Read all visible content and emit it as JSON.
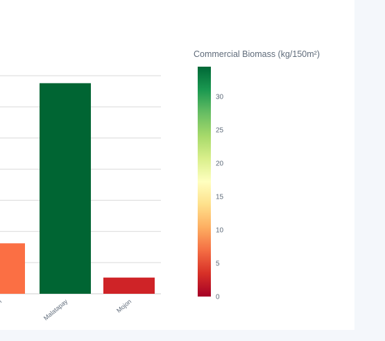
{
  "chart_data": {
    "type": "bar",
    "title": "",
    "xlabel": "",
    "ylabel": "",
    "categories": [
      "n",
      "Malatapay",
      "Mojon"
    ],
    "values": [
      8.1,
      33.8,
      2.6
    ],
    "ylim": [
      0,
      35
    ],
    "grid": true,
    "legend": "none",
    "colorbar": {
      "title": "Commercial Biomass (kg/150m²)",
      "range": [
        0,
        34.5
      ],
      "ticks": [
        0,
        5,
        10,
        15,
        20,
        25,
        30
      ],
      "colorscale": [
        "#a50026",
        "#d73027",
        "#f46d43",
        "#fdae61",
        "#fee08b",
        "#ffffbf",
        "#d9ef8b",
        "#a6d96a",
        "#66bd63",
        "#1a9850",
        "#006837"
      ]
    }
  },
  "colors": {
    "bar_n": "#fb6f44",
    "bar_malatapay": "#006533",
    "bar_mojon": "#cf2327",
    "grid": "#d9d9d9",
    "background": "#f4f7fb"
  }
}
